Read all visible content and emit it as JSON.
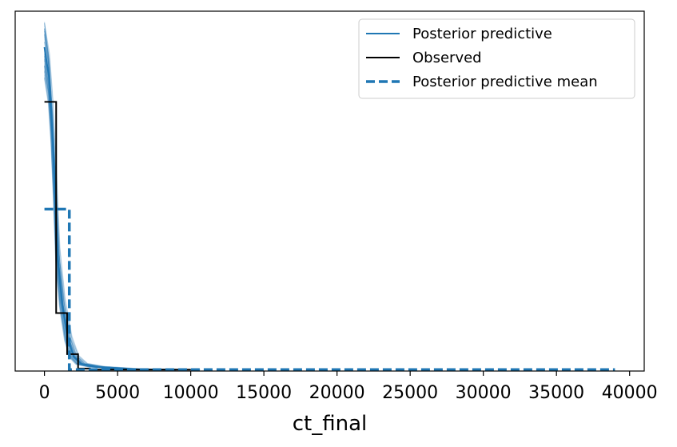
{
  "chart_data": {
    "type": "line",
    "title": "",
    "xlabel": "ct_final",
    "ylabel": "",
    "xlim": [
      -2000,
      41000
    ],
    "ylim": [
      0,
      1.0
    ],
    "y_ticks_shown": false,
    "x_ticks": [
      0,
      5000,
      10000,
      15000,
      20000,
      25000,
      30000,
      35000,
      40000
    ],
    "x_tick_labels": [
      "0",
      "5000",
      "10000",
      "15000",
      "20000",
      "25000",
      "30000",
      "35000",
      "40000"
    ],
    "legend_position": "top-right",
    "colors": {
      "predictive": "#1f77b4",
      "observed": "#000000",
      "mean": "#1f77b4"
    },
    "series": [
      {
        "name": "Posterior predictive",
        "style": "solid-translucent-many-draws",
        "x": [
          0,
          300,
          500,
          700,
          900,
          1200,
          1600,
          2000,
          2500,
          3500,
          6000,
          9000
        ],
        "y": [
          0.9,
          0.82,
          0.7,
          0.52,
          0.32,
          0.19,
          0.09,
          0.04,
          0.02,
          0.012,
          0.005,
          0.004
        ]
      },
      {
        "name": "Observed",
        "style": "step-solid",
        "x": [
          0,
          800,
          800,
          1550,
          1550,
          2300,
          2300,
          3100,
          3100,
          10000
        ],
        "y": [
          0.748,
          0.748,
          0.161,
          0.161,
          0.047,
          0.047,
          0.007,
          0.007,
          0.004,
          0.004
        ]
      },
      {
        "name": "Posterior predictive mean",
        "style": "step-dashed",
        "x": [
          0,
          1700,
          1700,
          39000
        ],
        "y": [
          0.45,
          0.45,
          0.004,
          0.004
        ]
      }
    ]
  }
}
